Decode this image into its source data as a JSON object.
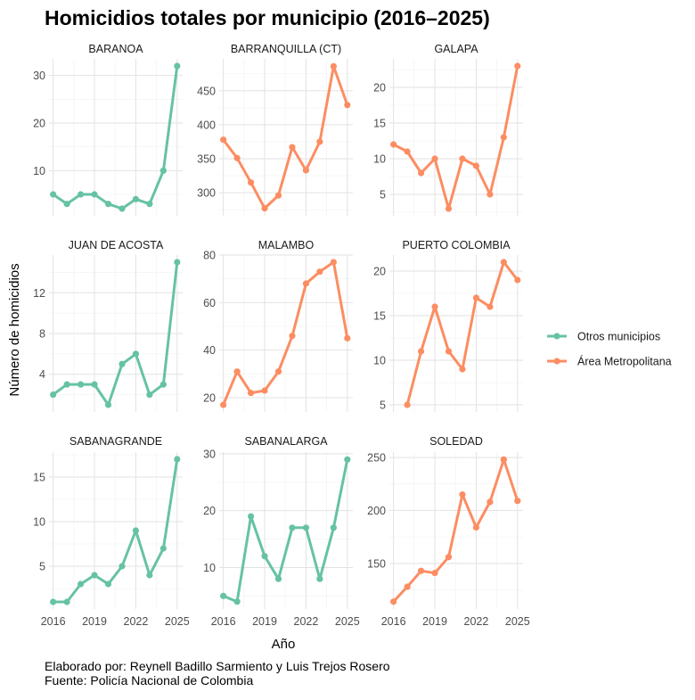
{
  "chart_data": {
    "type": "line",
    "title": "Homicidios totales por municipio (2016–2025)",
    "xlabel": "Año",
    "ylabel": "Número de homicidios",
    "x": [
      2016,
      2017,
      2018,
      2019,
      2020,
      2021,
      2022,
      2023,
      2024,
      2025
    ],
    "xticks": [
      2016,
      2019,
      2022,
      2025
    ],
    "legend": {
      "position": "right",
      "entries": [
        {
          "key": "otros",
          "label": "Otros municipios",
          "color": "#66c2a5"
        },
        {
          "key": "amb",
          "label": "Área Metropolitana",
          "color": "#fc8d62"
        }
      ]
    },
    "grid": true,
    "panels": [
      {
        "name": "BARANOA",
        "group": "otros",
        "values": [
          5,
          3,
          5,
          5,
          3,
          2,
          4,
          3,
          10,
          32
        ],
        "ylim": [
          0.5,
          33.5
        ],
        "yticks": [
          10,
          20,
          30
        ]
      },
      {
        "name": "BARRANQUILLA (CT)",
        "group": "amb",
        "values": [
          378,
          351,
          315,
          277,
          296,
          367,
          333,
          375,
          486,
          429
        ],
        "ylim": [
          266,
          497
        ],
        "yticks": [
          300,
          350,
          400,
          450
        ]
      },
      {
        "name": "GALAPA",
        "group": "amb",
        "values": [
          12,
          11,
          8,
          10,
          3,
          10,
          9,
          5,
          13,
          23
        ],
        "ylim": [
          2,
          24
        ],
        "yticks": [
          5,
          10,
          15,
          20
        ]
      },
      {
        "name": "JUAN DE ACOSTA",
        "group": "otros",
        "values": [
          2,
          3,
          3,
          3,
          1,
          5,
          6,
          2,
          3,
          15
        ],
        "ylim": [
          0.3,
          15.7
        ],
        "yticks": [
          4,
          8,
          12
        ]
      },
      {
        "name": "MALAMBO",
        "group": "amb",
        "values": [
          17,
          31,
          22,
          23,
          31,
          46,
          68,
          73,
          77,
          45
        ],
        "ylim": [
          14,
          80
        ],
        "yticks": [
          20,
          40,
          60,
          80
        ]
      },
      {
        "name": "PUERTO COLOMBIA",
        "group": "amb",
        "values": [
          null,
          5,
          11,
          16,
          11,
          9,
          17,
          16,
          21,
          19
        ],
        "ylim": [
          4.2,
          21.8
        ],
        "yticks": [
          5,
          10,
          15,
          20
        ]
      },
      {
        "name": "SABANAGRANDE",
        "group": "otros",
        "values": [
          1,
          1,
          3,
          4,
          3,
          5,
          9,
          4,
          7,
          17
        ],
        "ylim": [
          0.2,
          17.8
        ],
        "yticks": [
          5,
          10,
          15
        ]
      },
      {
        "name": "SABANALARGA",
        "group": "otros",
        "values": [
          5,
          4,
          19,
          12,
          8,
          17,
          17,
          8,
          17,
          29
        ],
        "ylim": [
          2.7,
          30.3
        ],
        "yticks": [
          10,
          20,
          30
        ]
      },
      {
        "name": "SOLEDAD",
        "group": "amb",
        "values": [
          114,
          128,
          143,
          141,
          156,
          215,
          184,
          208,
          248,
          209
        ],
        "ylim": [
          107,
          255
        ],
        "yticks": [
          150,
          200,
          250
        ]
      }
    ]
  },
  "caption": {
    "line1": "Elaborado por: Reynell Badillo Sarmiento y Luis Trejos Rosero",
    "line2": "Fuente: Policía Nacional de Colombia"
  }
}
